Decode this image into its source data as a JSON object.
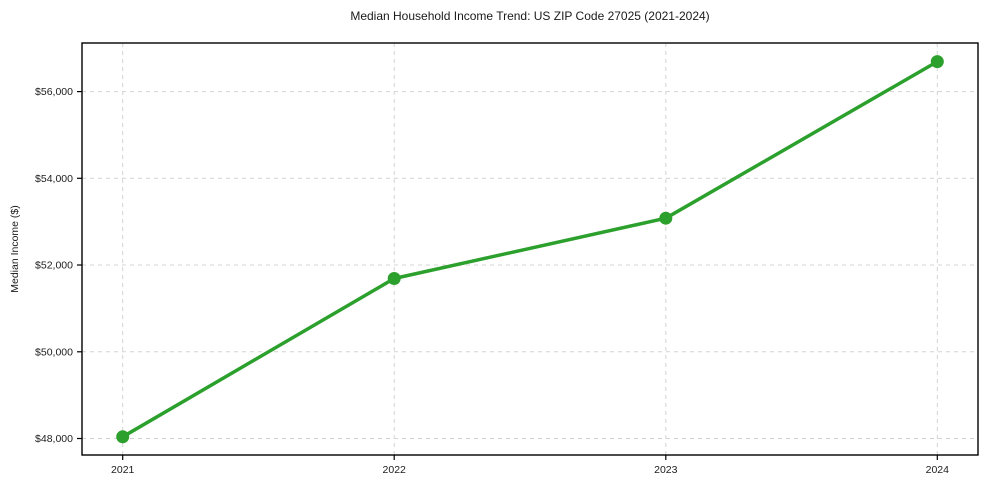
{
  "chart_data": {
    "type": "line",
    "title": "Median Household Income Trend: US ZIP Code 27025 (2021-2024)",
    "xlabel": "",
    "ylabel": "Median Income ($)",
    "x": [
      2021,
      2022,
      2023,
      2024
    ],
    "x_tick_labels": [
      "2021",
      "2022",
      "2023",
      "2024"
    ],
    "series": [
      {
        "values": [
          48040,
          51690,
          53080,
          56690
        ],
        "color": "#2ca02c",
        "marker": "circle"
      }
    ],
    "y_ticks": [
      48000,
      50000,
      52000,
      54000,
      56000
    ],
    "y_tick_labels": [
      "$48,000",
      "$50,000",
      "$52,000",
      "$54,000",
      "$56,000"
    ],
    "xlim": [
      2020.85,
      2024.15
    ],
    "ylim": [
      47620,
      57120
    ],
    "grid": true,
    "grid_style": "dashed",
    "legend": false
  },
  "colors": {
    "line": "#2ca02c",
    "grid": "#d4d4d4",
    "frame": "#000000",
    "text": "#202020",
    "background": "#ffffff"
  }
}
